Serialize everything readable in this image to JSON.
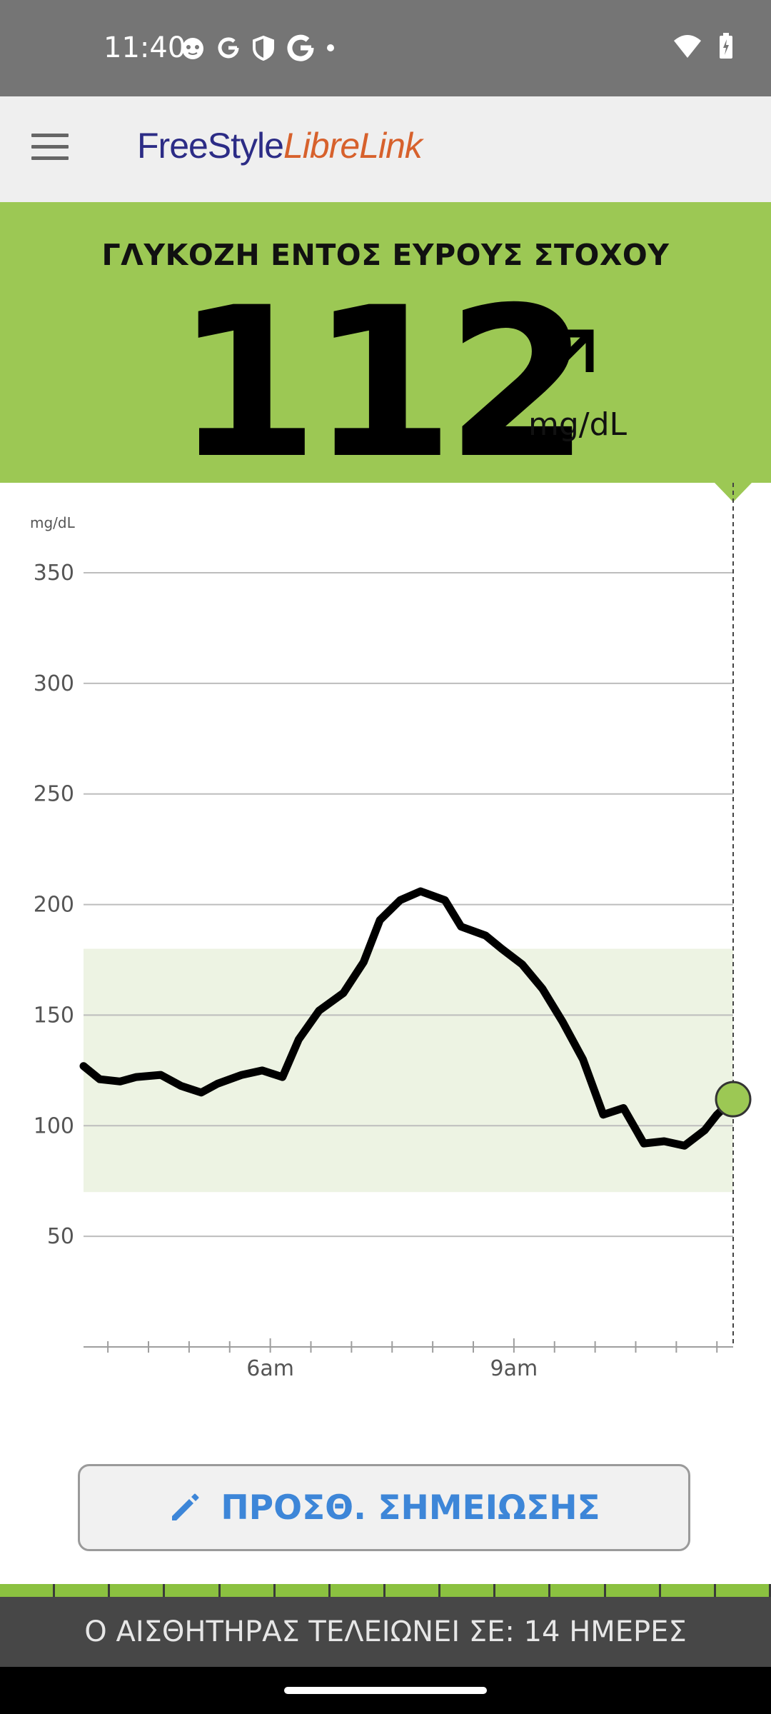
{
  "status_bar": {
    "time": "11:40",
    "icons": [
      "cat-face-icon",
      "google-g-icon",
      "shield-icon",
      "google-g-bold-icon",
      "dot-icon"
    ],
    "right_icons": [
      "wifi-icon",
      "battery-charging-icon"
    ]
  },
  "app_bar": {
    "menu_icon": "hamburger-menu-icon",
    "logo_part1": "FreeStyle",
    "logo_part2": "LibreLink"
  },
  "glucose": {
    "status_title": "ΓΛΥΚΟΖΗ ΕΝΤΟΣ ΕΥΡΟΥΣ ΣΤΟΧΟΥ",
    "value": "112",
    "trend": "arrow-up-right-icon",
    "unit": "mg/dL",
    "status_color": "#9cc854"
  },
  "chart_data": {
    "type": "line",
    "title": "",
    "ylabel": "mg/dL",
    "xlabel": "",
    "ylim": [
      0,
      350
    ],
    "yticks": [
      50,
      100,
      150,
      200,
      250,
      300,
      350
    ],
    "xticks": [
      {
        "label": "6am",
        "hour": 6
      },
      {
        "label": "9am",
        "hour": 9
      }
    ],
    "xlim_hours": [
      3.7,
      11.7
    ],
    "target_range": [
      70,
      180
    ],
    "target_color": "#edf3e3",
    "current_point": {
      "hour": 11.7,
      "value": 112
    },
    "series": [
      {
        "x": [
          3.7,
          3.9,
          4.15,
          4.35,
          4.65,
          4.9,
          5.15,
          5.35,
          5.65,
          5.9,
          6.15,
          6.35,
          6.6,
          6.9,
          7.15,
          7.35,
          7.6,
          7.85,
          8.15,
          8.35,
          8.65,
          8.85,
          9.1,
          9.35,
          9.6,
          9.85,
          10.1,
          10.35,
          10.6,
          10.85,
          11.1,
          11.35,
          11.5,
          11.7
        ],
        "values": [
          127,
          121,
          120,
          122,
          123,
          118,
          115,
          119,
          123,
          125,
          122,
          139,
          152,
          160,
          174,
          193,
          202,
          206,
          202,
          190,
          186,
          180,
          173,
          162,
          147,
          130,
          105,
          108,
          92,
          93,
          91,
          98,
          105,
          112
        ]
      }
    ]
  },
  "note_button": {
    "icon": "pencil-icon",
    "label": "ΠΡΟΣΘ. ΣΗΜΕΙΩΣΗΣ"
  },
  "sensor": {
    "segments_total": 14,
    "segments_remaining": 14,
    "text": "Ο ΑΙΣΘΗΤΗΡΑΣ ΤΕΛΕΙΩΝΕΙ ΣΕ: 14 ΗΜΕΡΕΣ"
  }
}
